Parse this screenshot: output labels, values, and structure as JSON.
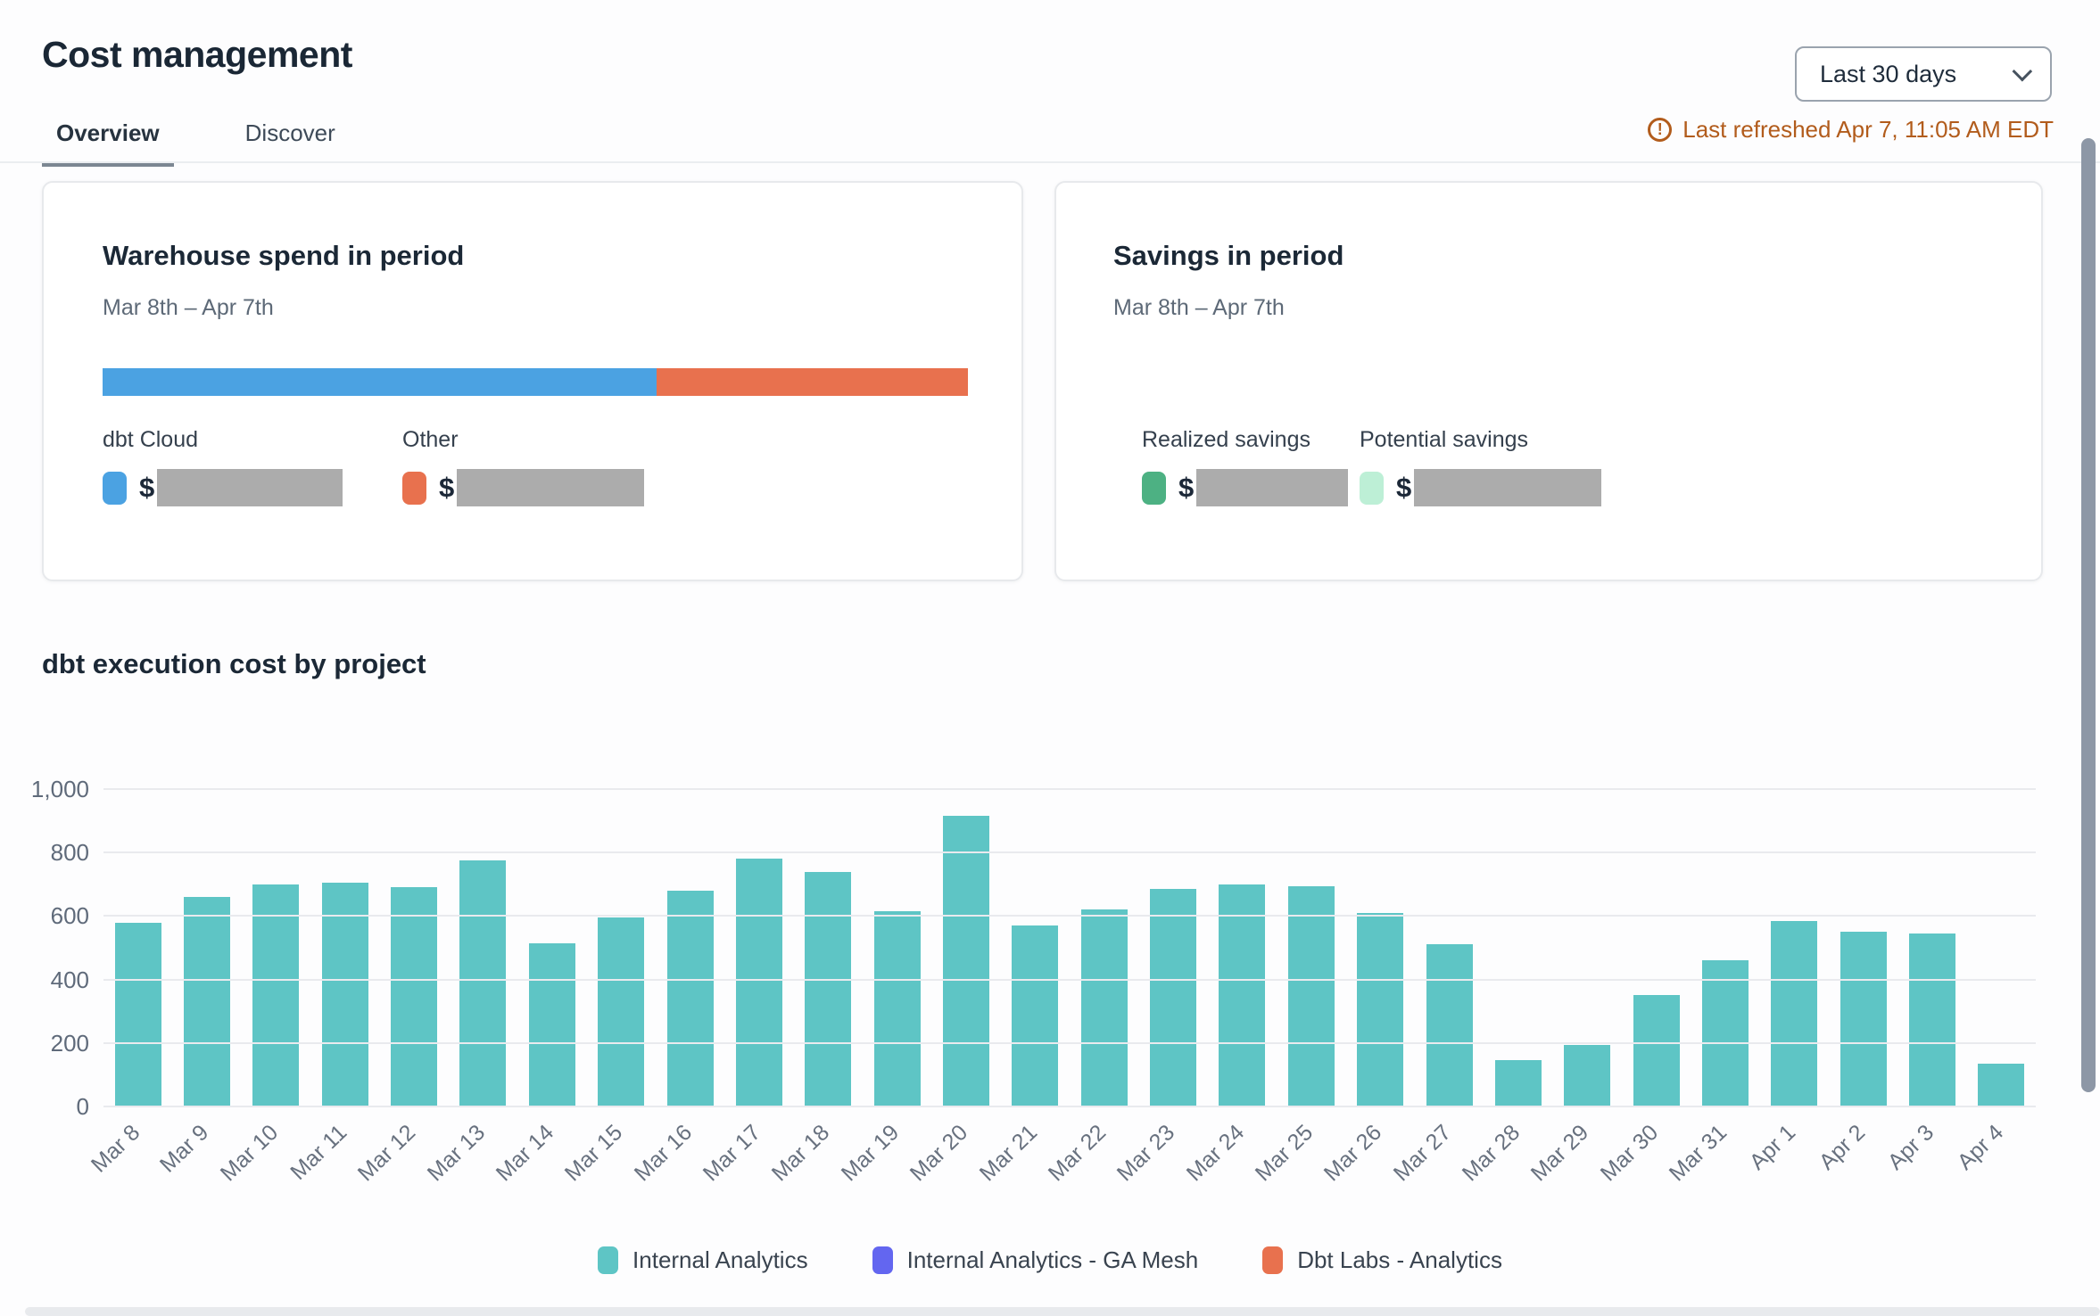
{
  "header": {
    "title": "Cost management",
    "tabs": [
      {
        "label": "Overview",
        "active": true
      },
      {
        "label": "Discover",
        "active": false
      }
    ],
    "range_selector": {
      "value": "Last 30 days"
    },
    "last_refreshed": "Last refreshed Apr 7, 11:05 AM EDT",
    "alert_icon_glyph": "!"
  },
  "cards": {
    "warehouse": {
      "title": "Warehouse spend in period",
      "period": "Mar 8th – Apr 7th",
      "currency_symbol": "$",
      "segments": [
        {
          "label": "dbt Cloud",
          "color": "#4ba2e2",
          "share_pct": 64
        },
        {
          "label": "Other",
          "color": "#e8714e",
          "share_pct": 36
        }
      ],
      "values_redacted": true
    },
    "savings": {
      "title": "Savings in period",
      "period": "Mar 8th – Apr 7th",
      "currency_symbol": "$",
      "items": [
        {
          "label": "Realized savings",
          "color": "#4db183"
        },
        {
          "label": "Potential savings",
          "color": "#bdefd6"
        }
      ],
      "values_redacted": true
    }
  },
  "chart_data": {
    "type": "bar",
    "title": "dbt execution cost by project",
    "categories": [
      "Mar 8",
      "Mar 9",
      "Mar 10",
      "Mar 11",
      "Mar 12",
      "Mar 13",
      "Mar 14",
      "Mar 15",
      "Mar 16",
      "Mar 17",
      "Mar 18",
      "Mar 19",
      "Mar 20",
      "Mar 21",
      "Mar 22",
      "Mar 23",
      "Mar 24",
      "Mar 25",
      "Mar 26",
      "Mar 27",
      "Mar 28",
      "Mar 29",
      "Mar 30",
      "Mar 31",
      "Apr 1",
      "Apr 2",
      "Apr 3",
      "Apr 4"
    ],
    "series": [
      {
        "name": "Internal Analytics",
        "color": "#5ec5c5",
        "values": [
          580,
          660,
          700,
          705,
          690,
          775,
          515,
          595,
          680,
          780,
          740,
          615,
          915,
          570,
          620,
          685,
          700,
          695,
          610,
          510,
          145,
          195,
          350,
          460,
          585,
          550,
          545,
          135
        ]
      }
    ],
    "legend": [
      {
        "label": "Internal Analytics",
        "color": "#5ec5c5"
      },
      {
        "label": "Internal Analytics - GA Mesh",
        "color": "#6366f0"
      },
      {
        "label": "Dbt Labs - Analytics",
        "color": "#e8714e"
      }
    ],
    "xlabel": "",
    "ylabel": "",
    "ylim": [
      0,
      1000
    ],
    "yticks": [
      0,
      200,
      400,
      600,
      800,
      1000
    ],
    "ytick_labels": [
      "0",
      "200",
      "400",
      "600",
      "800",
      "1,000"
    ],
    "grid": true,
    "legend_position": "bottom"
  }
}
